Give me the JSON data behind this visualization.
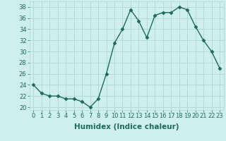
{
  "x": [
    0,
    1,
    2,
    3,
    4,
    5,
    6,
    7,
    8,
    9,
    10,
    11,
    12,
    13,
    14,
    15,
    16,
    17,
    18,
    19,
    20,
    21,
    22,
    23
  ],
  "y": [
    24,
    22.5,
    22,
    22,
    21.5,
    21.5,
    21,
    20,
    21.5,
    26,
    31.5,
    34,
    37.5,
    35.5,
    32.5,
    36.5,
    37,
    37,
    38,
    37.5,
    34.5,
    32,
    30,
    27
  ],
  "line_color": "#1a6b5a",
  "marker": "D",
  "marker_size": 2.5,
  "bg_color": "#cff0ea",
  "grid_color": "#aed8d0",
  "xlabel": "Humidex (Indice chaleur)",
  "xlim": [
    -0.5,
    23.5
  ],
  "ylim": [
    19.5,
    39
  ],
  "yticks": [
    20,
    22,
    24,
    26,
    28,
    30,
    32,
    34,
    36,
    38
  ],
  "xtick_labels": [
    "0",
    "1",
    "2",
    "3",
    "4",
    "5",
    "6",
    "7",
    "8",
    "9",
    "10",
    "11",
    "12",
    "13",
    "14",
    "15",
    "16",
    "17",
    "18",
    "19",
    "20",
    "21",
    "22",
    "23"
  ],
  "tick_fontsize": 6,
  "xlabel_fontsize": 7.5,
  "line_width": 1.0
}
